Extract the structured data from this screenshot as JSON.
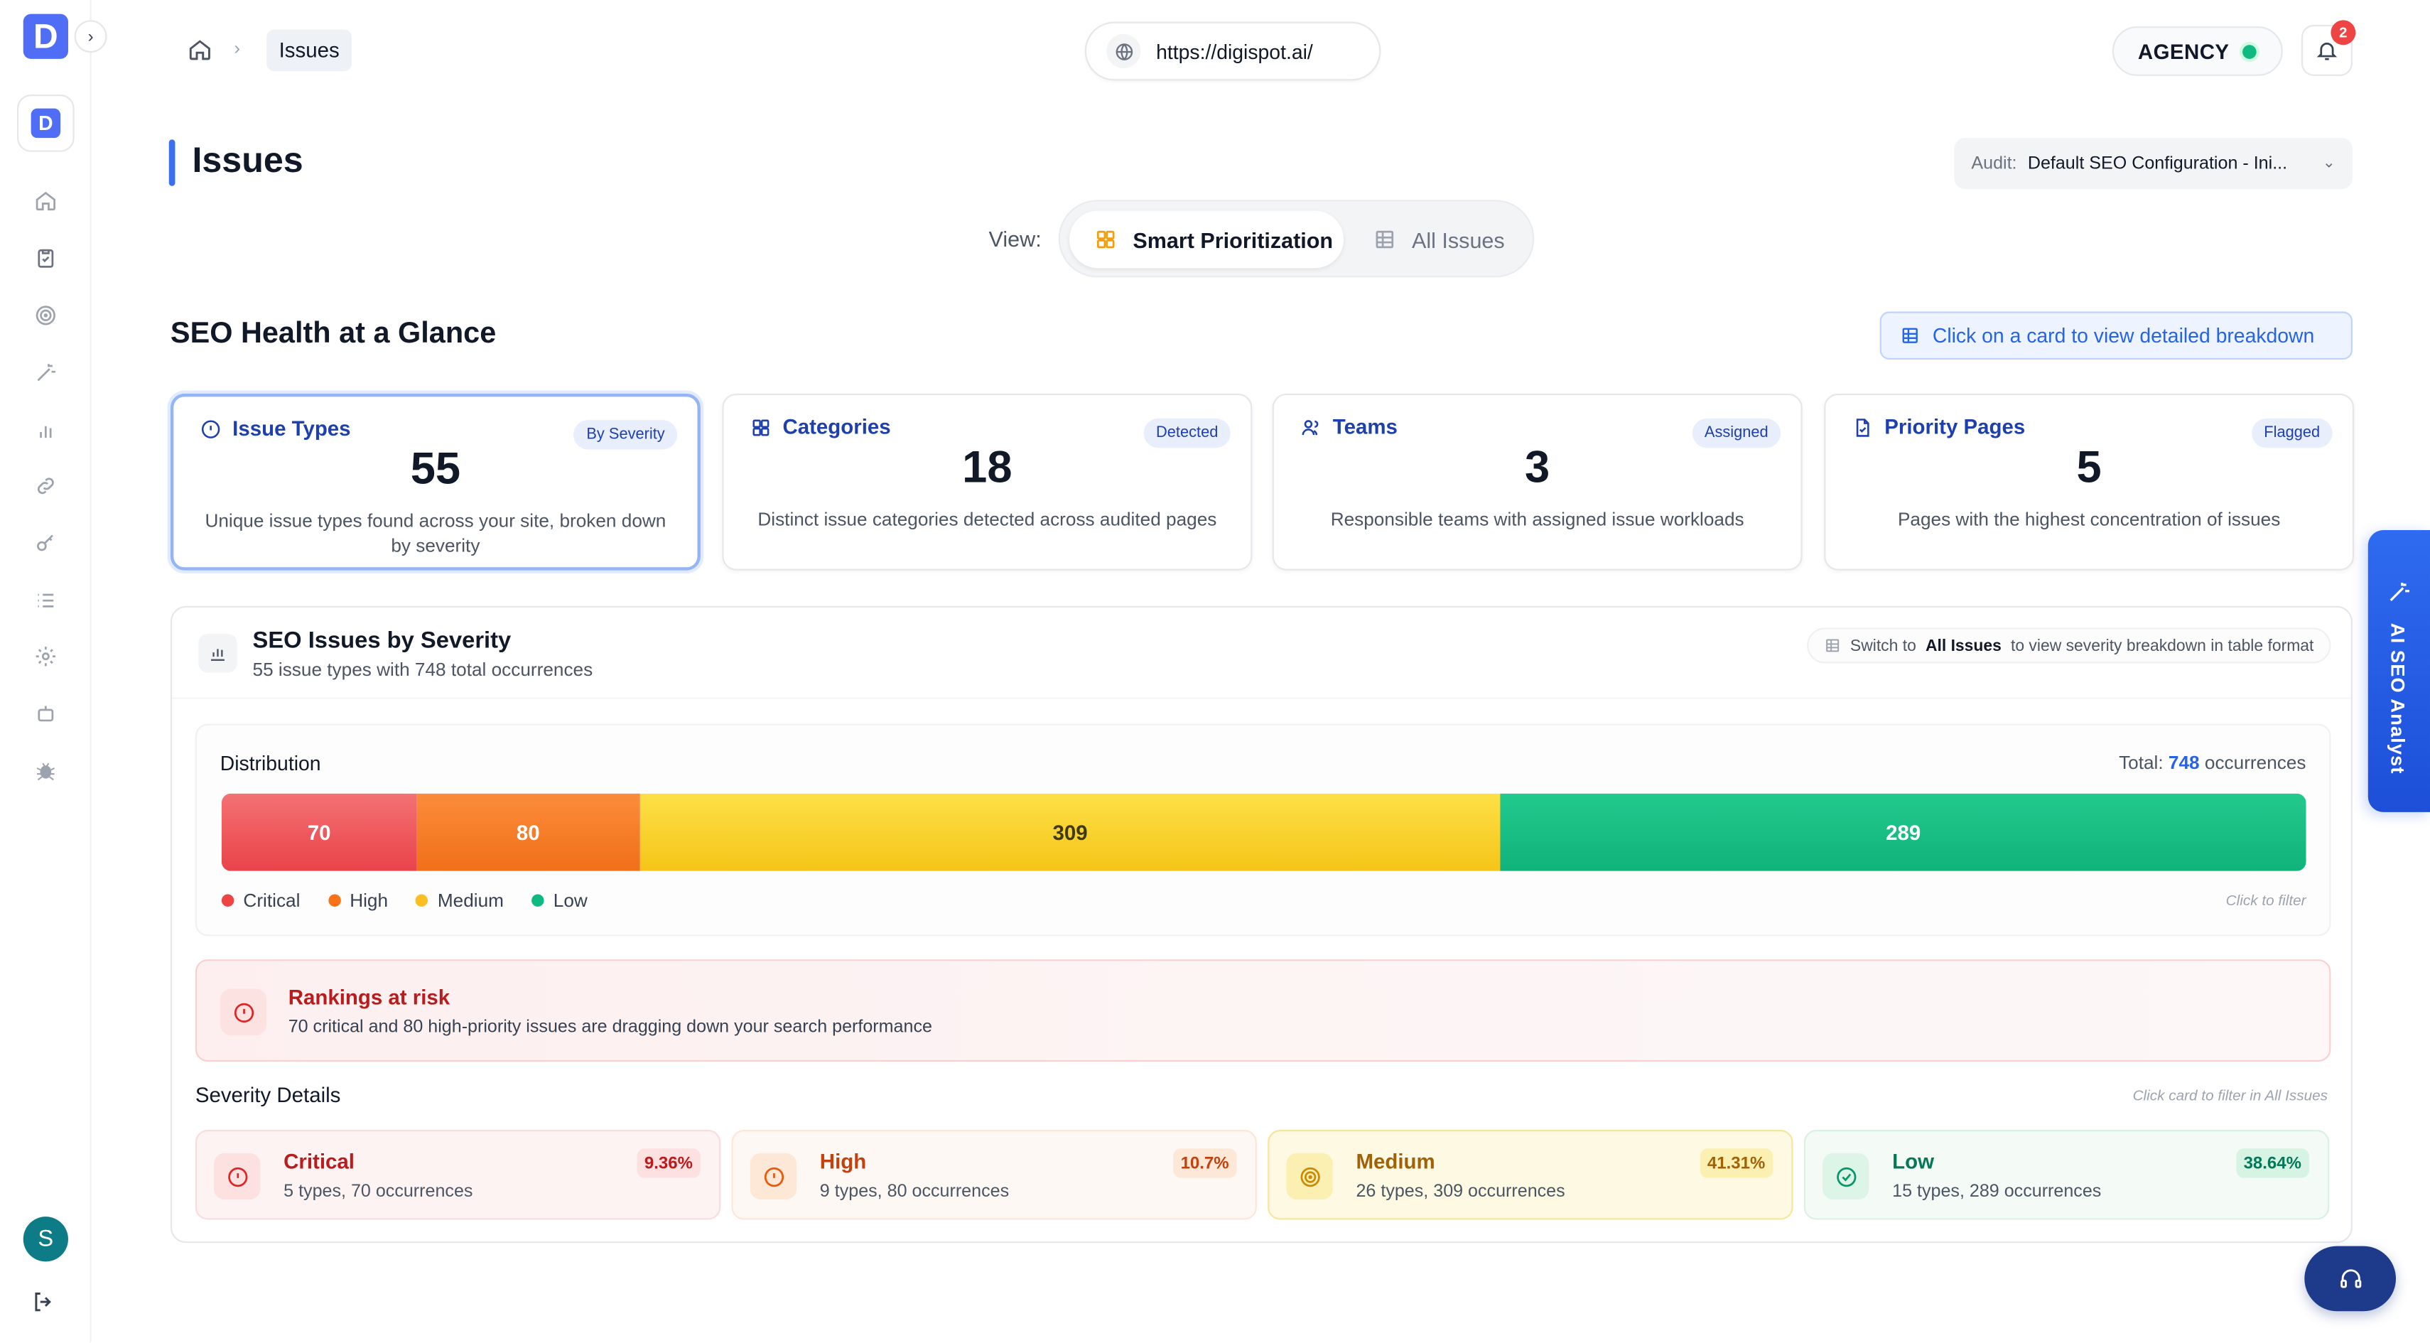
{
  "sidebar": {
    "logo_letter": "D",
    "workspace_letter": "D",
    "avatar_letter": "S",
    "nav_icons": [
      "home-icon",
      "clipboard-icon",
      "target-icon",
      "magic-wand-icon",
      "bar-chart-icon",
      "link-icon",
      "key-icon",
      "list-icon",
      "gear-icon",
      "bot-icon",
      "bug-icon"
    ]
  },
  "topbar": {
    "breadcrumb_current": "Issues",
    "url": "https://digispot.ai/",
    "plan": "AGENCY",
    "notification_count": "2"
  },
  "page": {
    "title": "Issues",
    "audit_label": "Audit:",
    "audit_value": "Default SEO Configuration - Ini...",
    "view_label": "View:",
    "view_options": [
      "Smart Prioritization",
      "All Issues"
    ],
    "view_selected": "Smart Prioritization"
  },
  "glance": {
    "heading": "SEO Health at a Glance",
    "hint": "Click on a card to view detailed breakdown",
    "cards": [
      {
        "title": "Issue Types",
        "tag": "By Severity",
        "value": "55",
        "desc": "Unique issue types found across your site, broken down by severity"
      },
      {
        "title": "Categories",
        "tag": "Detected",
        "value": "18",
        "desc": "Distinct issue categories detected across audited pages"
      },
      {
        "title": "Teams",
        "tag": "Assigned",
        "value": "3",
        "desc": "Responsible teams with assigned issue workloads"
      },
      {
        "title": "Priority Pages",
        "tag": "Flagged",
        "value": "5",
        "desc": "Pages with the highest concentration of issues"
      }
    ]
  },
  "severity": {
    "title": "SEO Issues by Severity",
    "subtitle": "55 issue types with 748 total occurrences",
    "hint_prefix": "Switch to",
    "hint_link": "All Issues",
    "hint_suffix": "to view severity breakdown in table format",
    "distribution_title": "Distribution",
    "total_prefix": "Total:",
    "total_value": "748",
    "total_suffix": "occurrences",
    "click_to_filter": "Click to filter",
    "segments": [
      {
        "name": "Critical",
        "value": 70,
        "color": "#ef4444"
      },
      {
        "name": "High",
        "value": 80,
        "color": "#f97316"
      },
      {
        "name": "Medium",
        "value": 309,
        "color": "#fbbf24"
      },
      {
        "name": "Low",
        "value": 289,
        "color": "#10b981"
      }
    ],
    "risk_title": "Rankings at risk",
    "risk_text": "70 critical and 80 high-priority issues are dragging down your search performance",
    "details_title": "Severity Details",
    "details_hint": "Click card to filter in All Issues",
    "details": [
      {
        "name": "Critical",
        "sub": "5 types, 70 occurrences",
        "pct": "9.36%"
      },
      {
        "name": "High",
        "sub": "9 types, 80 occurrences",
        "pct": "10.7%"
      },
      {
        "name": "Medium",
        "sub": "26 types, 309 occurrences",
        "pct": "41.31%"
      },
      {
        "name": "Low",
        "sub": "15 types, 289 occurrences",
        "pct": "38.64%"
      }
    ]
  },
  "ai_tab": {
    "label": "AI SEO Analyst"
  }
}
